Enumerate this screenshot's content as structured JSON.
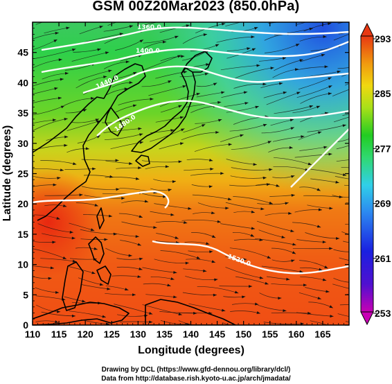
{
  "title": "GSM 00Z20Mar2023 (850.0hPa)",
  "xaxis": {
    "label": "Longitude (degrees)",
    "ticks": [
      "110",
      "115",
      "120",
      "125",
      "130",
      "135",
      "140",
      "145",
      "150",
      "155",
      "160",
      "165"
    ],
    "range": [
      110,
      170
    ]
  },
  "yaxis": {
    "label": "Latitude  (degrees)",
    "ticks": [
      "0",
      "5",
      "10",
      "15",
      "20",
      "25",
      "30",
      "35",
      "40",
      "45"
    ],
    "range": [
      0,
      50
    ]
  },
  "colorbar": {
    "labels": [
      "293",
      "285",
      "277",
      "269",
      "261",
      "253"
    ],
    "range": [
      253,
      293
    ],
    "colors": [
      "#d600b0",
      "#1a10d8",
      "#2c6cf0",
      "#30c8f0",
      "#30d878",
      "#22cc22",
      "#9ee01c",
      "#f0e010",
      "#f5a010",
      "#f05a10",
      "#e83812"
    ]
  },
  "contour_labels": [
    "1360.0",
    "1400.0",
    "1440.0",
    "1480.0",
    "1520.0"
  ],
  "credits": {
    "line1": "Drawing by DCL (https://www.gfd-dennou.org/library/dcl/)",
    "line2": "Data from http://database.rish.kyoto-u.ac.jp/arch/jmadata/"
  }
}
